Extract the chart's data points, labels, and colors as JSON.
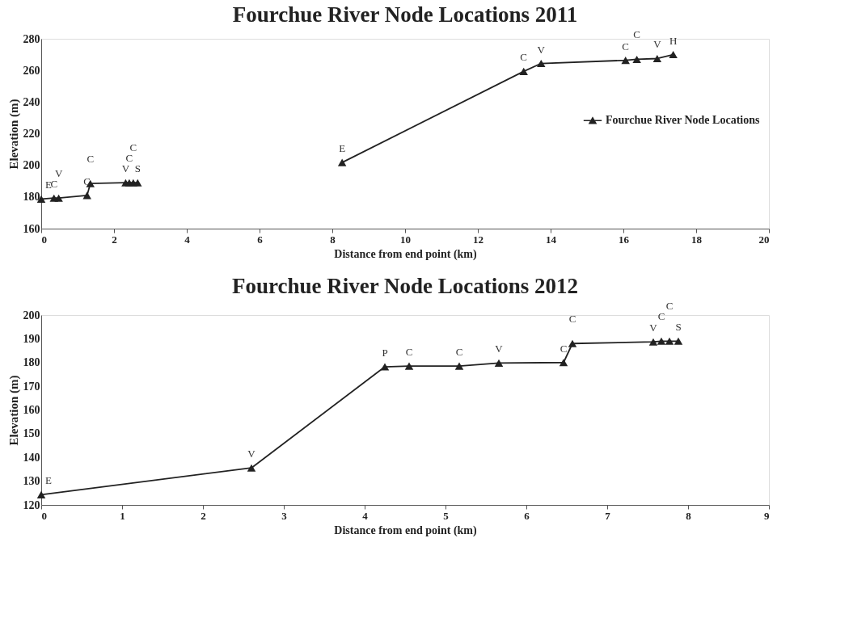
{
  "chart_data": [
    {
      "type": "line",
      "title": "Fourchue River Node Locations 2011",
      "xlabel": "Distance from end point (km)",
      "ylabel": "Elevation (m)",
      "x": [
        0,
        0.35,
        0.48,
        1.26,
        1.35,
        2.32,
        2.42,
        2.53,
        2.65,
        5.5,
        8.27,
        13.26,
        13.74,
        16.06,
        16.37,
        16.93,
        17.37
      ],
      "series": [
        {
          "name": "Fourchue River Node Locations",
          "color": "#222222",
          "values": [
            178.7,
            179.3,
            179.3,
            181,
            188.5,
            189,
            189,
            189,
            189,
            null,
            201.8,
            259.4,
            264.4,
            266.4,
            267,
            267.5,
            270
          ]
        }
      ],
      "xlim": [
        0,
        20
      ],
      "xticks": [
        0,
        2,
        4,
        6,
        8,
        10,
        12,
        14,
        16,
        18,
        20
      ],
      "ylim": [
        160,
        280
      ],
      "yticks": [
        160,
        180,
        200,
        220,
        240,
        260,
        280
      ],
      "grid": false,
      "legend": "right",
      "marker": "triangle",
      "line_style": "solid",
      "annotations": [
        {
          "text": "E",
          "x": 0,
          "y": 178.7
        },
        {
          "text": "C",
          "x": 0.35,
          "y": 179.3
        },
        {
          "text": "V",
          "x": 0.48,
          "y": 179.3
        },
        {
          "text": "C",
          "x": 1.26,
          "y": 181
        },
        {
          "text": "C",
          "x": 1.35,
          "y": 188.5
        },
        {
          "text": "V",
          "x": 2.32,
          "y": 189
        },
        {
          "text": "C",
          "x": 2.42,
          "y": 189
        },
        {
          "text": "C",
          "x": 2.53,
          "y": 189
        },
        {
          "text": "S",
          "x": 2.65,
          "y": 189
        },
        {
          "text": "E",
          "x": 8.27,
          "y": 201.8
        },
        {
          "text": "C",
          "x": 13.26,
          "y": 259.4
        },
        {
          "text": "V",
          "x": 13.74,
          "y": 264.4
        },
        {
          "text": "C",
          "x": 16.06,
          "y": 266.4
        },
        {
          "text": "C",
          "x": 16.37,
          "y": 267
        },
        {
          "text": "V",
          "x": 16.93,
          "y": 267.5
        },
        {
          "text": "H",
          "x": 17.37,
          "y": 270
        }
      ]
    },
    {
      "type": "line",
      "title": "Fourchue River Node Locations 2012",
      "xlabel": "Distance from end point (km)",
      "ylabel": "Elevation (m)",
      "x": [
        0,
        2.6,
        4.25,
        4.55,
        5.17,
        5.66,
        6.46,
        6.57,
        7.57,
        7.67,
        7.77,
        7.88
      ],
      "series": [
        {
          "name": "Fourchue River Node Locations",
          "color": "#222222",
          "values": [
            124.3,
            135.6,
            178.2,
            178.5,
            178.5,
            179.8,
            180,
            188,
            188.7,
            189,
            189,
            189
          ]
        }
      ],
      "xlim": [
        0,
        9
      ],
      "xticks": [
        0,
        1,
        2,
        3,
        4,
        5,
        6,
        7,
        8,
        9
      ],
      "ylim": [
        120,
        200
      ],
      "yticks": [
        120,
        130,
        140,
        150,
        160,
        170,
        180,
        190,
        200
      ],
      "grid": false,
      "legend": "right",
      "marker": "triangle",
      "line_style": "solid",
      "annotations": [
        {
          "text": "E",
          "x": 0,
          "y": 124.3
        },
        {
          "text": "V",
          "x": 2.6,
          "y": 135.6
        },
        {
          "text": "P",
          "x": 4.25,
          "y": 178.2
        },
        {
          "text": "C",
          "x": 4.55,
          "y": 178.5
        },
        {
          "text": "C",
          "x": 5.17,
          "y": 178.5
        },
        {
          "text": "V",
          "x": 5.66,
          "y": 179.8
        },
        {
          "text": "C",
          "x": 6.46,
          "y": 180
        },
        {
          "text": "C",
          "x": 6.57,
          "y": 188
        },
        {
          "text": "V",
          "x": 7.57,
          "y": 188.7
        },
        {
          "text": "C",
          "x": 7.67,
          "y": 189
        },
        {
          "text": "C",
          "x": 7.77,
          "y": 189
        },
        {
          "text": "S",
          "x": 7.88,
          "y": 189
        }
      ]
    }
  ]
}
